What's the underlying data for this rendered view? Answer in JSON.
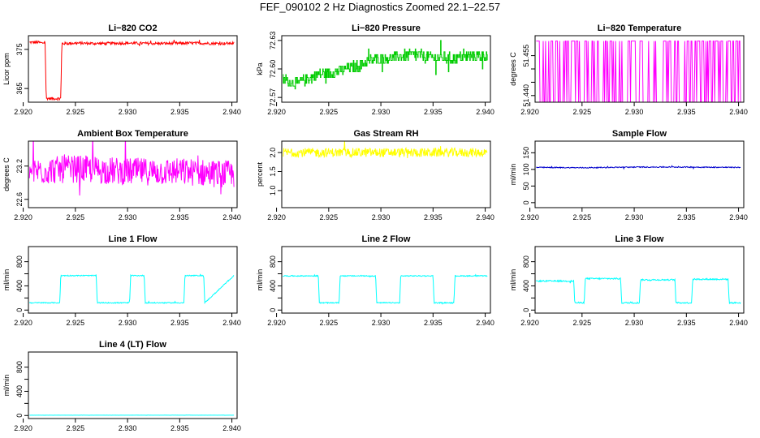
{
  "figure": {
    "title": "FEF_090102  2 Hz Diagnostics Zoomed 22.1–22.57"
  },
  "chart_data": [
    {
      "type": "line",
      "title": "Li−820 CO2",
      "ylabel": "Licor ppm",
      "xlim": [
        2.9205,
        2.9405
      ],
      "ylim": [
        361.5,
        378.5
      ],
      "xticks": [
        2.92,
        2.925,
        2.93,
        2.935,
        2.94
      ],
      "xtick_labels": [
        "2.920",
        "2.925",
        "2.930",
        "2.935",
        "2.940"
      ],
      "yticks": [
        365,
        375
      ],
      "ytick_labels": [
        "365",
        "375"
      ],
      "color": "#ff0000",
      "series": [
        {
          "x": [
            2.9206,
            2.9215,
            2.9218,
            2.9221,
            2.9222,
            2.923,
            2.9236,
            2.9237,
            2.9238,
            2.925,
            2.927,
            2.93,
            2.933,
            2.936,
            2.939,
            2.9402
          ],
          "y": [
            376.8,
            376.8,
            376.6,
            376.8,
            362.5,
            362.4,
            362.5,
            376.6,
            376.5,
            376.6,
            376.5,
            376.6,
            376.5,
            376.6,
            376.5,
            376.6
          ],
          "noise": 0.35
        }
      ]
    },
    {
      "type": "line",
      "title": "Li−820 Pressure",
      "ylabel": "kPa",
      "xlim": [
        2.9205,
        2.9405
      ],
      "ylim": [
        72.565,
        72.635
      ],
      "xticks": [
        2.92,
        2.925,
        2.93,
        2.935,
        2.94
      ],
      "xtick_labels": [
        "2.920",
        "2.925",
        "2.930",
        "2.935",
        "2.940"
      ],
      "yticks": [
        72.57,
        72.6,
        72.63
      ],
      "ytick_labels": [
        "72.57",
        "72.60",
        "72.63"
      ],
      "color": "#00cc00",
      "series": [
        {
          "x": [
            2.9206,
            2.922,
            2.924,
            2.926,
            2.928,
            2.929,
            2.931,
            2.933,
            2.935,
            2.937,
            2.939,
            2.9402
          ],
          "y": [
            72.588,
            72.585,
            72.594,
            72.598,
            72.604,
            72.609,
            72.612,
            72.615,
            72.612,
            72.611,
            72.614,
            72.614
          ],
          "noise": 0.006,
          "step": 0.003
        }
      ]
    },
    {
      "type": "line",
      "title": "Li−820 Temperature",
      "ylabel": "degrees C",
      "xlim": [
        2.9205,
        2.9405
      ],
      "ylim": [
        51.4375,
        51.4625
      ],
      "xticks": [
        2.92,
        2.925,
        2.93,
        2.935,
        2.94
      ],
      "xtick_labels": [
        "2.920",
        "2.925",
        "2.930",
        "2.935",
        "2.940"
      ],
      "yticks": [
        51.44,
        51.445,
        51.45,
        51.455
      ],
      "ytick_labels": [
        "51.440",
        "",
        "",
        "51.455"
      ],
      "color": "#ff00ff",
      "series": [
        {
          "x": [
            2.9206,
            2.9402
          ],
          "y": [
            51.4375,
            51.4605
          ],
          "binary": true
        }
      ]
    },
    {
      "type": "line",
      "title": "Ambient Box Temperature",
      "ylabel": "degrees C",
      "xlim": [
        2.9205,
        2.9405
      ],
      "ylim": [
        22.45,
        23.65
      ],
      "xticks": [
        2.92,
        2.925,
        2.93,
        2.935,
        2.94
      ],
      "xtick_labels": [
        "2.920",
        "2.925",
        "2.930",
        "2.935",
        "2.940"
      ],
      "yticks": [
        22.6,
        23.2
      ],
      "ytick_labels": [
        "22.6",
        "23.2"
      ],
      "color": "#ff00ff",
      "series": [
        {
          "x": [
            2.9206,
            2.925,
            2.93,
            2.935,
            2.9402
          ],
          "y": [
            23.1,
            23.15,
            23.1,
            23.1,
            23.05
          ],
          "noise": 0.25
        }
      ]
    },
    {
      "type": "line",
      "title": "Gas Stream RH",
      "ylabel": "percent",
      "xlim": [
        2.9205,
        2.9405
      ],
      "ylim": [
        0.55,
        2.3
      ],
      "xticks": [
        2.92,
        2.925,
        2.93,
        2.935,
        2.94
      ],
      "xtick_labels": [
        "2.920",
        "2.925",
        "2.930",
        "2.935",
        "2.940"
      ],
      "yticks": [
        1.0,
        1.5,
        2.0
      ],
      "ytick_labels": [
        "1.0",
        "1.5",
        "2.0"
      ],
      "color": "#ffff00",
      "series": [
        {
          "x": [
            2.9206,
            2.925,
            2.93,
            2.935,
            2.9402
          ],
          "y": [
            2.0,
            2.0,
            2.0,
            2.0,
            2.0
          ],
          "noise": 0.12
        }
      ]
    },
    {
      "type": "line",
      "title": "Sample Flow",
      "ylabel": "ml/min",
      "xlim": [
        2.9205,
        2.9405
      ],
      "ylim": [
        -15,
        185
      ],
      "xticks": [
        2.92,
        2.925,
        2.93,
        2.935,
        2.94
      ],
      "xtick_labels": [
        "2.920",
        "2.925",
        "2.930",
        "2.935",
        "2.940"
      ],
      "yticks": [
        0,
        50,
        100,
        150
      ],
      "ytick_labels": [
        "0",
        "50",
        "100",
        "150"
      ],
      "color": "#0000cc",
      "series": [
        {
          "x": [
            2.9206,
            2.925,
            2.93,
            2.935,
            2.9402
          ],
          "y": [
            106,
            105,
            107,
            107,
            106
          ],
          "noise": 1.5
        }
      ]
    },
    {
      "type": "line",
      "title": "Line 1 Flow",
      "ylabel": "ml/min",
      "xlim": [
        2.9205,
        2.9405
      ],
      "ylim": [
        -50,
        1050
      ],
      "xticks": [
        2.92,
        2.925,
        2.93,
        2.935,
        2.94
      ],
      "xtick_labels": [
        "2.920",
        "2.925",
        "2.930",
        "2.935",
        "2.940"
      ],
      "yticks": [
        0,
        200,
        400,
        600,
        800
      ],
      "ytick_labels": [
        "0",
        "",
        "400",
        "",
        "800"
      ],
      "color": "#00ffff",
      "series": [
        {
          "x": [
            2.9206,
            2.9235,
            2.9236,
            2.927,
            2.9271,
            2.9302,
            2.9303,
            2.9316,
            2.9317,
            2.9354,
            2.9355,
            2.9373,
            2.9374,
            2.9402
          ],
          "y": [
            120,
            120,
            570,
            570,
            120,
            120,
            570,
            570,
            120,
            120,
            570,
            570,
            120,
            570
          ],
          "noise": 8
        }
      ]
    },
    {
      "type": "line",
      "title": "Line 2 Flow",
      "ylabel": "ml/min",
      "xlim": [
        2.9205,
        2.9405
      ],
      "ylim": [
        -50,
        1050
      ],
      "xticks": [
        2.92,
        2.925,
        2.93,
        2.935,
        2.94
      ],
      "xtick_labels": [
        "2.920",
        "2.925",
        "2.930",
        "2.935",
        "2.940"
      ],
      "yticks": [
        0,
        200,
        400,
        600,
        800
      ],
      "ytick_labels": [
        "0",
        "",
        "400",
        "",
        "800"
      ],
      "color": "#00ffff",
      "series": [
        {
          "x": [
            2.9206,
            2.924,
            2.9241,
            2.926,
            2.9261,
            2.9295,
            2.9296,
            2.9318,
            2.9319,
            2.935,
            2.9351,
            2.937,
            2.9371,
            2.9402
          ],
          "y": [
            565,
            565,
            120,
            120,
            565,
            565,
            120,
            120,
            565,
            565,
            120,
            120,
            565,
            565
          ],
          "noise": 8
        }
      ]
    },
    {
      "type": "line",
      "title": "Line 3 Flow",
      "ylabel": "ml/min",
      "xlim": [
        2.9205,
        2.9405
      ],
      "ylim": [
        -50,
        1050
      ],
      "xticks": [
        2.92,
        2.925,
        2.93,
        2.935,
        2.94
      ],
      "xtick_labels": [
        "2.920",
        "2.925",
        "2.930",
        "2.935",
        "2.940"
      ],
      "yticks": [
        0,
        200,
        400,
        600,
        800
      ],
      "ytick_labels": [
        "0",
        "",
        "400",
        "",
        "800"
      ],
      "color": "#00ffff",
      "series": [
        {
          "x": [
            2.9206,
            2.9242,
            2.9243,
            2.9252,
            2.9253,
            2.9287,
            2.9288,
            2.9305,
            2.9306,
            2.9339,
            2.934,
            2.9355,
            2.9356,
            2.939,
            2.9391,
            2.9402
          ],
          "y": [
            480,
            480,
            120,
            120,
            520,
            520,
            120,
            120,
            500,
            500,
            120,
            120,
            510,
            510,
            120,
            120
          ],
          "noise": 12
        }
      ]
    },
    {
      "type": "line",
      "title": "Line 4 (LT) Flow",
      "ylabel": "ml/min",
      "xlim": [
        2.9205,
        2.9405
      ],
      "ylim": [
        -50,
        1050
      ],
      "xticks": [
        2.92,
        2.925,
        2.93,
        2.935,
        2.94
      ],
      "xtick_labels": [
        "2.920",
        "2.925",
        "2.930",
        "2.935",
        "2.940"
      ],
      "yticks": [
        0,
        200,
        400,
        600,
        800
      ],
      "ytick_labels": [
        "0",
        "",
        "400",
        "",
        "800"
      ],
      "color": "#00ffff",
      "series": [
        {
          "x": [
            2.9206,
            2.9402
          ],
          "y": [
            5,
            5
          ],
          "noise": 1
        }
      ]
    }
  ]
}
